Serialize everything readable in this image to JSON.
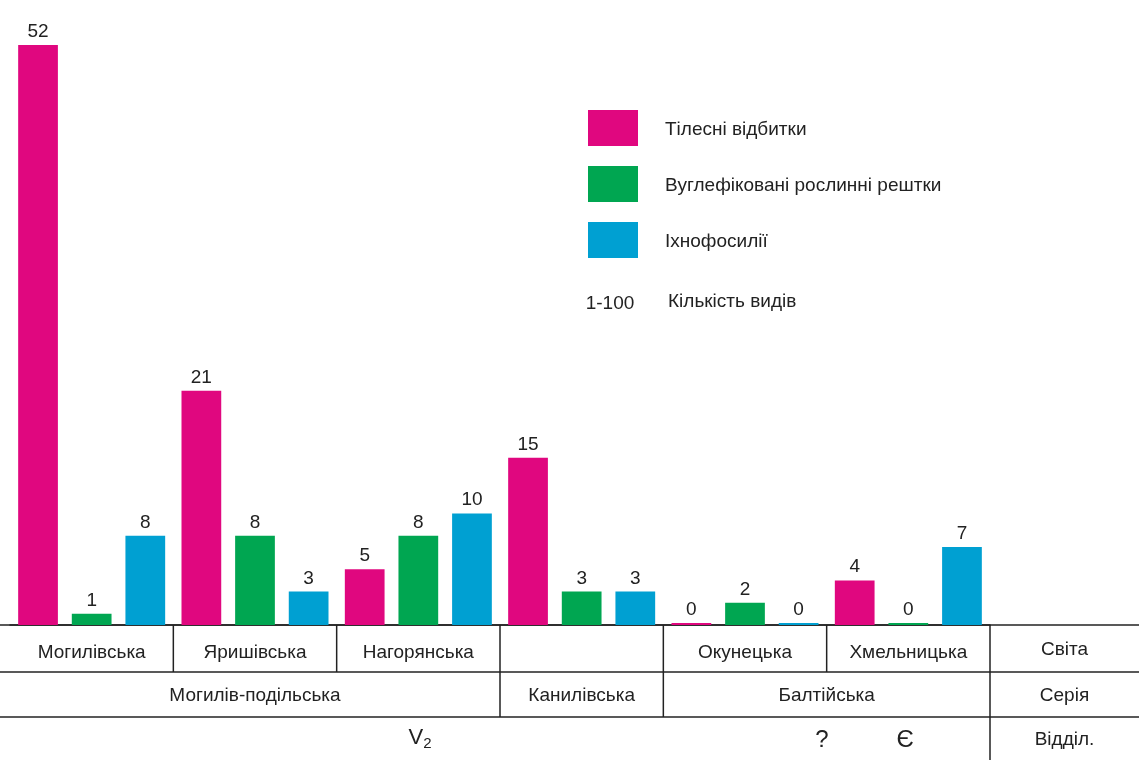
{
  "chart_data": {
    "type": "bar",
    "categories": [
      "Могилівська",
      "Яришівська",
      "Нагорянська",
      null,
      "Окунецька",
      "Хмельницька"
    ],
    "series": [
      {
        "name": "Тілесні відбитки",
        "color": "#e0077f",
        "values": [
          52,
          21,
          5,
          15,
          0,
          4
        ]
      },
      {
        "name": "Вуглефіковані рослинні рештки",
        "color": "#00a651",
        "values": [
          1,
          8,
          8,
          3,
          2,
          0
        ]
      },
      {
        "name": "Іхнофосилії",
        "color": "#00a0d2",
        "values": [
          8,
          3,
          10,
          3,
          0,
          7
        ]
      }
    ],
    "data_labels": true,
    "legend": "top right",
    "annotations": [
      "Світа",
      "Серія",
      "Відділ.",
      "Могилів-подільська",
      "Канилівська",
      "Балтійська",
      "V$_{2}$",
      "?",
      "Є",
      "1-100",
      "Кількість видів"
    ]
  }
}
